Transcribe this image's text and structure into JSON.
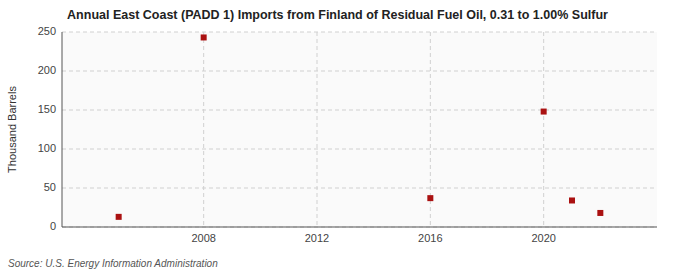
{
  "chart_data": {
    "type": "scatter",
    "title": "Annual East Coast (PADD 1) Imports from Finland of Residual Fuel Oil, 0.31 to 1.00% Sulfur",
    "y_label": "Thousand Barrels",
    "annotations": [
      "Source: U.S. Energy Information Administration"
    ],
    "x": [
      2005,
      2008,
      2016,
      2020,
      2021,
      2022
    ],
    "values": [
      13,
      243,
      37,
      148,
      34,
      18
    ],
    "color": "#aa1111",
    "marker": "square",
    "xlim": [
      2003,
      2024
    ],
    "ylim": [
      0,
      250
    ],
    "xticks": [
      2008,
      2012,
      2016,
      2020
    ],
    "yticks": [
      0,
      50,
      100,
      150,
      200,
      250
    ],
    "grid": true
  }
}
